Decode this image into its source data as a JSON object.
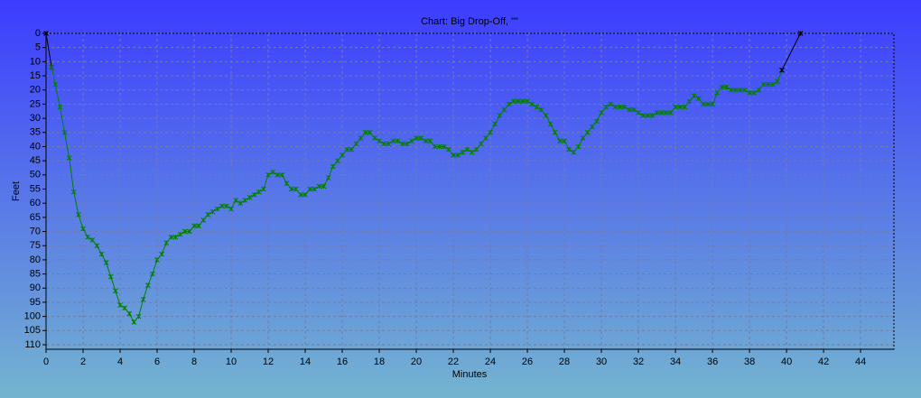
{
  "chart_data": {
    "type": "line",
    "title": "Chart: Big Drop-Off, \"\"",
    "xlabel": "Minutes",
    "ylabel": "Feet",
    "xlim": [
      0,
      45.8
    ],
    "ylim": [
      0,
      111.6
    ],
    "y_inverted": true,
    "grid": true,
    "xticks": [
      0,
      2,
      4,
      6,
      8,
      10,
      12,
      14,
      16,
      18,
      20,
      22,
      24,
      26,
      28,
      30,
      32,
      34,
      36,
      38,
      40,
      42,
      44
    ],
    "yticks": [
      0,
      5,
      10,
      15,
      20,
      25,
      30,
      35,
      40,
      45,
      50,
      55,
      60,
      65,
      70,
      75,
      80,
      85,
      90,
      95,
      100,
      105,
      110
    ],
    "series": [
      {
        "color": "#000000",
        "x": [
          0,
          0.3
        ],
        "values": [
          0,
          12
        ]
      },
      {
        "color": "#008000",
        "x": [
          0.3,
          0.5,
          0.75,
          1.0,
          1.25,
          1.5,
          1.75,
          2.0,
          2.25,
          2.5,
          2.75,
          3.0,
          3.25,
          3.5,
          3.75,
          4.0,
          4.25,
          4.5,
          4.75,
          5.0,
          5.25,
          5.5,
          5.75,
          6.0,
          6.25,
          6.5,
          6.75,
          7.0,
          7.25,
          7.5,
          7.75,
          8.0,
          8.25,
          8.5,
          8.75,
          9.0,
          9.25,
          9.5,
          9.75,
          10.0,
          10.25,
          10.5,
          10.75,
          11.0,
          11.25,
          11.5,
          11.75,
          12.0,
          12.25,
          12.5,
          12.75,
          13.0,
          13.25,
          13.5,
          13.75,
          14.0,
          14.25,
          14.5,
          14.75,
          15.0,
          15.25,
          15.5,
          15.75,
          16.0,
          16.25,
          16.5,
          16.75,
          17.0,
          17.25,
          17.5,
          17.75,
          18.0,
          18.25,
          18.5,
          18.75,
          19.0,
          19.25,
          19.5,
          19.75,
          20.0,
          20.25,
          20.5,
          20.75,
          21.0,
          21.25,
          21.5,
          21.75,
          22.0,
          22.25,
          22.5,
          22.75,
          23.0,
          23.25,
          23.5,
          23.75,
          24.0,
          24.25,
          24.5,
          24.75,
          25.0,
          25.25,
          25.5,
          25.75,
          26.0,
          26.25,
          26.5,
          26.75,
          27.0,
          27.25,
          27.5,
          27.75,
          28.0,
          28.25,
          28.5,
          28.75,
          29.0,
          29.25,
          29.5,
          29.75,
          30.0,
          30.25,
          30.5,
          30.75,
          31.0,
          31.25,
          31.5,
          31.75,
          32.0,
          32.25,
          32.5,
          32.75,
          33.0,
          33.25,
          33.5,
          33.75,
          34.0,
          34.25,
          34.5,
          34.75,
          35.0,
          35.25,
          35.5,
          35.75,
          36.0,
          36.25,
          36.5,
          36.75,
          37.0,
          37.25,
          37.5,
          37.75,
          38.0,
          38.25,
          38.5,
          38.75,
          39.0,
          39.25,
          39.5,
          39.75
        ],
        "values": [
          12,
          18,
          26,
          35,
          44,
          56,
          64,
          69,
          72,
          73,
          75,
          78,
          81,
          86,
          91,
          96,
          97,
          99,
          102,
          100,
          94,
          89,
          85,
          80,
          78,
          74,
          72,
          72,
          71,
          70,
          70,
          68,
          68,
          66,
          64,
          63,
          62,
          61,
          61,
          62,
          59,
          60,
          59,
          58,
          57,
          56,
          55,
          50,
          49,
          50,
          50,
          53,
          55,
          55,
          57,
          57,
          55,
          55,
          54,
          54,
          51,
          47,
          45,
          43,
          41,
          41,
          39,
          37,
          35,
          35,
          37,
          38,
          39,
          39,
          38,
          38,
          39,
          39,
          38,
          37,
          37,
          38,
          38,
          40,
          40,
          40,
          41,
          43,
          43,
          42,
          41,
          42,
          41,
          39,
          37,
          35,
          32,
          29,
          27,
          25,
          24,
          24,
          24,
          24,
          25,
          26,
          27,
          29,
          32,
          35,
          38,
          38,
          41,
          42,
          40,
          37,
          35,
          33,
          31,
          28,
          26,
          25,
          26,
          26,
          26,
          27,
          27,
          28,
          29,
          29,
          29,
          28,
          28,
          28,
          28,
          26,
          26,
          26,
          24,
          22,
          23,
          25,
          25,
          25,
          21,
          19,
          19,
          20,
          20,
          20,
          20,
          21,
          21,
          20,
          18,
          18,
          18,
          17,
          13
        ]
      },
      {
        "color": "#000000",
        "x": [
          39.75,
          40.75
        ],
        "values": [
          13,
          0
        ]
      }
    ]
  }
}
